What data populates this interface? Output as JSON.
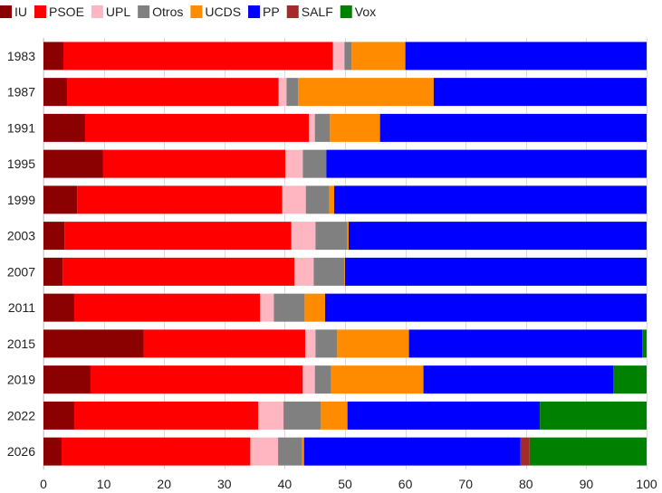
{
  "chart_data": {
    "type": "bar",
    "orientation": "horizontal",
    "stacked": true,
    "title": "",
    "xlabel": "",
    "ylabel": "",
    "xlim": [
      0,
      100
    ],
    "xticks": [
      0,
      10,
      20,
      30,
      40,
      50,
      60,
      70,
      80,
      90,
      100
    ],
    "grid": true,
    "legend_position": "top-left",
    "categories": [
      "1983",
      "1987",
      "1991",
      "1995",
      "1999",
      "2003",
      "2007",
      "2011",
      "2015",
      "2019",
      "2022",
      "2026"
    ],
    "series": [
      {
        "name": "IU",
        "color": "#8b0000",
        "values": [
          3.3,
          3.9,
          6.9,
          9.9,
          5.6,
          3.5,
          3.2,
          5.1,
          16.6,
          7.8,
          5.1,
          3.0
        ]
      },
      {
        "name": "PSOE",
        "color": "#ff0000",
        "values": [
          44.7,
          35.1,
          37.1,
          30.2,
          34.0,
          37.6,
          38.4,
          30.8,
          26.8,
          35.2,
          30.5,
          31.3
        ]
      },
      {
        "name": "UPL",
        "color": "#ffb6c1",
        "values": [
          1.9,
          1.3,
          1.0,
          2.9,
          3.9,
          4.0,
          3.2,
          2.3,
          1.7,
          2.0,
          4.2,
          4.6
        ]
      },
      {
        "name": "Otros",
        "color": "#808080",
        "values": [
          1.2,
          1.9,
          2.5,
          3.9,
          3.9,
          5.3,
          5.1,
          5.1,
          3.6,
          2.7,
          6.2,
          4.0
        ]
      },
      {
        "name": "UCDS",
        "color": "#ff8c00",
        "values": [
          8.9,
          22.5,
          8.3,
          0.0,
          0.8,
          0.2,
          0.1,
          3.4,
          11.9,
          15.3,
          4.4,
          0.3
        ]
      },
      {
        "name": "PP",
        "color": "#0000ff",
        "values": [
          40.0,
          35.3,
          44.2,
          53.1,
          51.8,
          49.4,
          50.0,
          53.3,
          38.7,
          31.5,
          31.9,
          35.9
        ]
      },
      {
        "name": "SALF",
        "color": "#a52a2a",
        "values": [
          0,
          0,
          0,
          0,
          0,
          0,
          0,
          0,
          0,
          0,
          0,
          1.5
        ]
      },
      {
        "name": "Vox",
        "color": "#008000",
        "values": [
          0,
          0,
          0,
          0,
          0,
          0,
          0,
          0,
          0.7,
          5.5,
          17.7,
          19.4
        ]
      }
    ]
  }
}
